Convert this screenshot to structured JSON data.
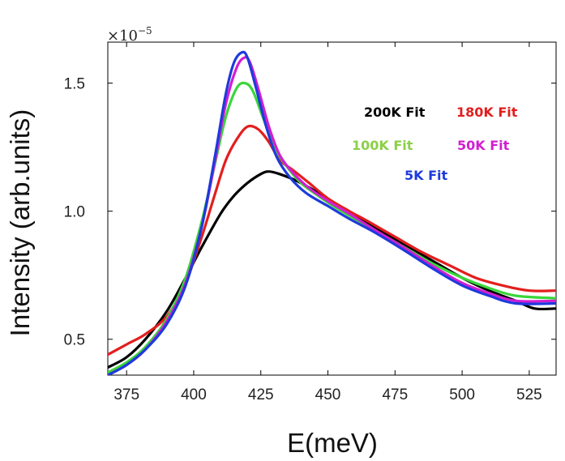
{
  "chart_data": {
    "type": "line",
    "title": "",
    "xlabel": "E(meV)",
    "ylabel": "Intensity (arb.units)",
    "y_multiplier": "×10",
    "y_multiplier_exponent": "−5",
    "xlim": [
      368,
      535
    ],
    "ylim": [
      0.36,
      1.66
    ],
    "x_ticks": [
      {
        "value": 375,
        "label": "375"
      },
      {
        "value": 400,
        "label": "400"
      },
      {
        "value": 425,
        "label": "425"
      },
      {
        "value": 450,
        "label": "450"
      },
      {
        "value": 475,
        "label": "475"
      },
      {
        "value": 500,
        "label": "500"
      },
      {
        "value": 525,
        "label": "525"
      }
    ],
    "y_ticks": [
      {
        "value": 0.5,
        "label": "0.5"
      },
      {
        "value": 1.0,
        "label": "1.0"
      },
      {
        "value": 1.5,
        "label": "1.5"
      }
    ],
    "grid": false,
    "legend_position": "top-right",
    "series": [
      {
        "name": "200K Fit",
        "color": "#000000",
        "x": [
          368,
          375,
          382,
          390,
          397,
          403,
          410,
          415,
          420,
          425,
          428,
          432,
          438,
          445,
          452,
          460,
          470,
          480,
          490,
          500,
          510,
          520,
          527,
          535
        ],
        "y": [
          0.39,
          0.43,
          0.5,
          0.61,
          0.74,
          0.86,
          0.99,
          1.06,
          1.11,
          1.145,
          1.155,
          1.145,
          1.12,
          1.08,
          1.03,
          0.98,
          0.92,
          0.86,
          0.8,
          0.74,
          0.69,
          0.65,
          0.62,
          0.62
        ]
      },
      {
        "name": "180K Fit",
        "color": "#e31e1e",
        "x": [
          368,
          375,
          382,
          390,
          397,
          403,
          408,
          412,
          416,
          420,
          424,
          428,
          432,
          437,
          443,
          450,
          458,
          465,
          475,
          485,
          495,
          505,
          515,
          525,
          535
        ],
        "y": [
          0.44,
          0.48,
          0.52,
          0.59,
          0.72,
          0.9,
          1.07,
          1.2,
          1.28,
          1.33,
          1.32,
          1.27,
          1.2,
          1.16,
          1.11,
          1.05,
          1.0,
          0.96,
          0.9,
          0.84,
          0.79,
          0.74,
          0.71,
          0.69,
          0.69
        ]
      },
      {
        "name": "100K Fit",
        "color": "#3ad63a",
        "x": [
          368,
          375,
          382,
          390,
          397,
          403,
          408,
          412,
          416,
          419,
          422,
          426,
          430,
          435,
          440,
          445,
          452,
          460,
          470,
          480,
          490,
          500,
          510,
          520,
          535
        ],
        "y": [
          0.37,
          0.41,
          0.47,
          0.58,
          0.74,
          0.96,
          1.19,
          1.37,
          1.48,
          1.5,
          1.47,
          1.36,
          1.25,
          1.17,
          1.11,
          1.07,
          1.02,
          0.97,
          0.91,
          0.85,
          0.79,
          0.74,
          0.7,
          0.67,
          0.66
        ]
      },
      {
        "name": "50K Fit",
        "color": "#d21ed2",
        "x": [
          368,
          375,
          382,
          390,
          397,
          403,
          408,
          412,
          416,
          419,
          421,
          424,
          428,
          432,
          437,
          443,
          450,
          458,
          467,
          478,
          490,
          500,
          510,
          520,
          535
        ],
        "y": [
          0.36,
          0.4,
          0.46,
          0.57,
          0.72,
          0.94,
          1.2,
          1.42,
          1.56,
          1.6,
          1.58,
          1.48,
          1.33,
          1.22,
          1.15,
          1.09,
          1.04,
          0.99,
          0.93,
          0.86,
          0.78,
          0.72,
          0.68,
          0.65,
          0.65
        ]
      },
      {
        "name": "5K Fit",
        "color": "#1e3adc",
        "x": [
          368,
          375,
          382,
          390,
          397,
          403,
          408,
          412,
          415,
          418,
          420,
          423,
          427,
          431,
          436,
          442,
          450,
          458,
          467,
          478,
          490,
          500,
          510,
          520,
          535
        ],
        "y": [
          0.36,
          0.4,
          0.46,
          0.56,
          0.71,
          0.94,
          1.22,
          1.46,
          1.58,
          1.62,
          1.6,
          1.49,
          1.33,
          1.21,
          1.13,
          1.07,
          1.02,
          0.97,
          0.92,
          0.85,
          0.77,
          0.71,
          0.67,
          0.64,
          0.64
        ]
      }
    ],
    "legend": [
      {
        "label": "200K Fit",
        "color": "#000000"
      },
      {
        "label": "180K Fit",
        "color": "#e31e1e"
      },
      {
        "label": "100K Fit",
        "color": "#8bd046"
      },
      {
        "label": "50K Fit",
        "color": "#d21ed2"
      },
      {
        "label": "5K Fit",
        "color": "#1e3adc"
      }
    ]
  }
}
